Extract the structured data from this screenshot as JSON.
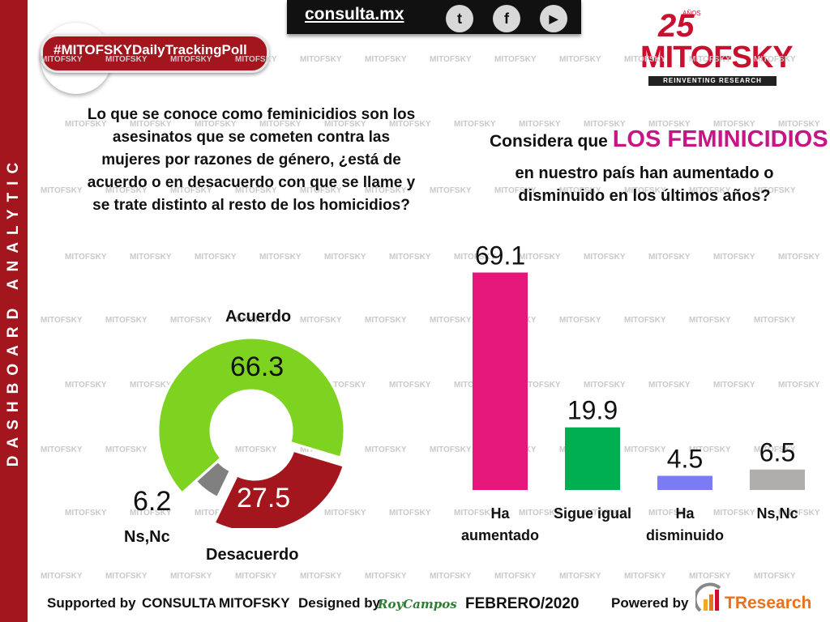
{
  "sidebar": {
    "label": "DASHBOARD ANALYTIC"
  },
  "header": {
    "site": "consulta.mx",
    "social": [
      {
        "icon": "twitter-icon",
        "glyph": "t"
      },
      {
        "icon": "facebook-icon",
        "glyph": "f"
      },
      {
        "icon": "youtube-icon",
        "glyph": "▶"
      }
    ],
    "hashtag": "#MITOFSKYDailyTrackingPoll"
  },
  "logo": {
    "number": "25",
    "anos": "AÑOS",
    "name": "MITOFSKY",
    "tagline": "REINVENTING RESEARCH"
  },
  "watermark": "MITOFSKY",
  "left": {
    "question": "Lo que se conoce como feminicidios son los asesinatos que se cometen contra las mujeres por razones de género, ¿está de acuerdo o en desacuerdo con que se llame y se trate distinto al resto de los homicidios?"
  },
  "right": {
    "question_prefix": "Considera que ",
    "question_highlight": "LOS FEMINICIDIOS",
    "question_rest": "en nuestro país han aumentado o disminuido en los últimos años?"
  },
  "colors": {
    "brand": "#a4161e",
    "highlight": "#c71585"
  },
  "chart_data": [
    {
      "type": "pie",
      "style": "donut",
      "categories": [
        "Acuerdo",
        "Desacuerdo",
        "Ns,Nc"
      ],
      "values": [
        66.3,
        27.5,
        6.2
      ],
      "colors": [
        "#7ed321",
        "#a4161e",
        "#808080"
      ]
    },
    {
      "type": "bar",
      "categories": [
        "Ha aumentado",
        "Sigue igual",
        "Ha disminuido",
        "Ns,Nc"
      ],
      "values": [
        69.1,
        19.9,
        4.5,
        6.5
      ],
      "colors": [
        "#e6177a",
        "#00b050",
        "#7b7bf5",
        "#b0adad"
      ],
      "ylim": [
        0,
        70
      ],
      "grid": false
    }
  ],
  "footer": {
    "supported": "Supported by",
    "consulta": "CONSULTA",
    "mitofsky": "MITOFSKY",
    "designed": "Designed by",
    "designer": "RoyCampos",
    "date": "FEBRERO/2020",
    "powered": "Powered by",
    "tresearch": "TResearch"
  }
}
